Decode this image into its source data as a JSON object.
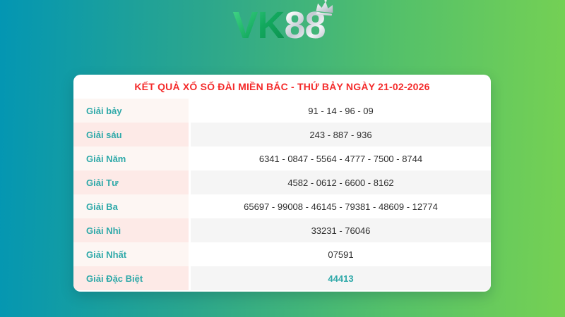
{
  "colors": {
    "bg_left": "#0396b3",
    "bg_right": "#76d153",
    "title_red": "#f42b2b",
    "label_teal": "#2fa9a9",
    "row_label_bg_odd": "#fdf6f3",
    "row_label_bg_even": "#fdeae7",
    "row_value_bg_odd": "#ffffff",
    "row_value_bg_even": "#f5f5f5",
    "value_text": "#2e2e2e",
    "highlight_value": "#2fa9a9"
  },
  "header": {
    "logo": {
      "part1": "VK",
      "part2": "88",
      "crown_icon": "crown-icon"
    }
  },
  "card": {
    "title": "KẾT QUẢ XỔ SỐ ĐÀI MIỀN BẮC - THỨ BẢY NGÀY 21-02-2026",
    "table": {
      "rows": [
        {
          "label": "Giải bảy",
          "value": "91 - 14 - 96 - 09"
        },
        {
          "label": "Giải sáu",
          "value": "243 - 887 - 936"
        },
        {
          "label": "Giải Năm",
          "value": "6341 - 0847 - 5564 - 4777 - 7500 - 8744"
        },
        {
          "label": "Giải Tư",
          "value": "4582 - 0612 - 6600 - 8162"
        },
        {
          "label": "Giải Ba",
          "value": "65697 - 99008 - 46145 - 79381 - 48609 - 12774"
        },
        {
          "label": "Giải Nhì",
          "value": "33231 - 76046"
        },
        {
          "label": "Giải Nhất",
          "value": "07591"
        },
        {
          "label": "Giải Đặc Biệt",
          "value": "44413",
          "highlight": true
        }
      ]
    }
  }
}
